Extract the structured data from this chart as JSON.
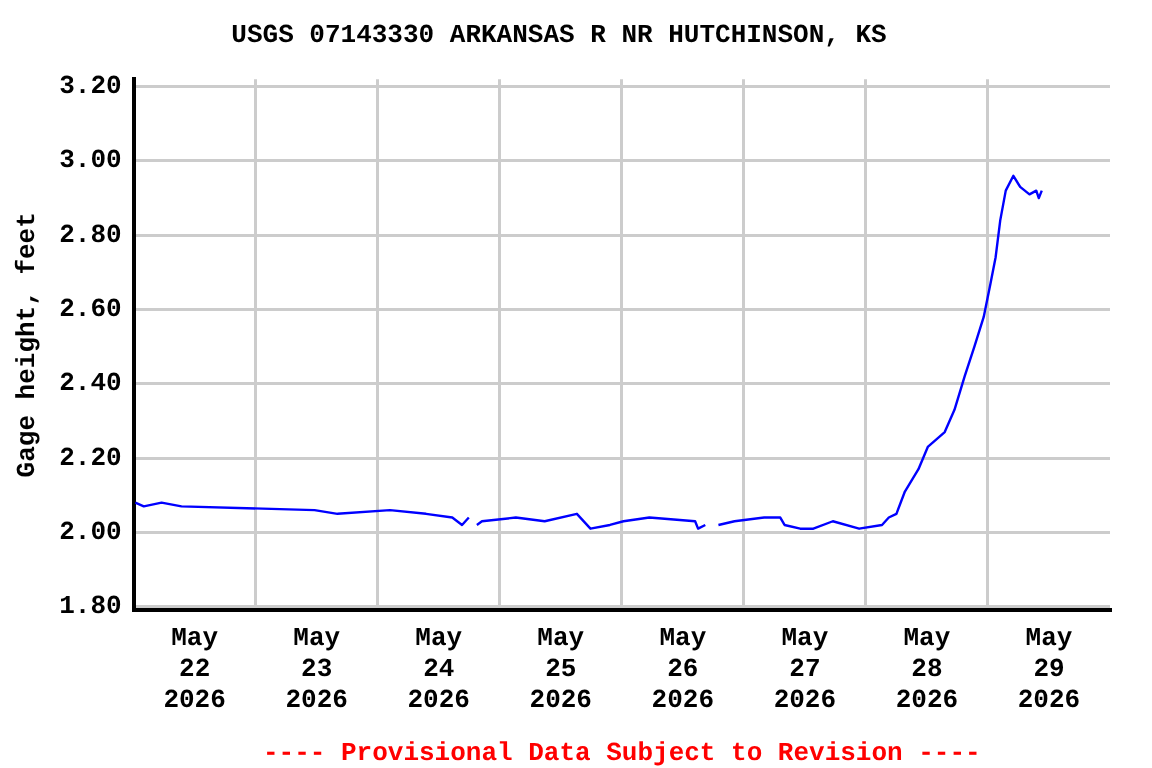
{
  "chart_data": {
    "type": "line",
    "title": "USGS 07143330 ARKANSAS R NR HUTCHINSON, KS",
    "ylabel": "Gage height, feet",
    "annotations": [
      "---- Provisional Data Subject to Revision ----"
    ],
    "x": [
      "2026-05-22T00:20",
      "2026-05-22T02:00",
      "2026-05-22T05:30",
      "2026-05-22T09:25",
      "2026-05-23T11:35",
      "2026-05-23T16:05",
      "2026-05-24T02:25",
      "2026-05-24T09:30",
      "2026-05-24T14:40",
      "2026-05-24T16:35",
      "2026-05-24T17:55",
      "2026-05-24T18:30",
      "2026-05-24T19:30",
      "2026-05-24T20:30",
      "2026-05-25T03:10",
      "2026-05-25T08:50",
      "2026-05-25T15:10",
      "2026-05-25T17:50",
      "2026-05-25T21:40",
      "2026-05-26T00:20",
      "2026-05-26T05:25",
      "2026-05-26T14:25",
      "2026-05-26T15:00",
      "2026-05-26T16:25",
      "2026-05-26T17:30",
      "2026-05-26T19:00",
      "2026-05-26T22:10",
      "2026-05-27T04:00",
      "2026-05-27T07:10",
      "2026-05-27T08:00",
      "2026-05-27T11:05",
      "2026-05-27T13:40",
      "2026-05-27T17:30",
      "2026-05-27T22:40",
      "2026-05-28T03:10",
      "2026-05-28T04:30",
      "2026-05-28T06:00",
      "2026-05-28T07:40",
      "2026-05-28T10:20",
      "2026-05-28T12:10",
      "2026-05-28T15:30",
      "2026-05-28T17:25",
      "2026-05-28T19:25",
      "2026-05-28T21:20",
      "2026-05-28T23:10",
      "2026-05-29T00:30",
      "2026-05-29T01:30",
      "2026-05-29T02:25",
      "2026-05-29T03:30",
      "2026-05-29T05:00",
      "2026-05-29T06:20",
      "2026-05-29T08:10",
      "2026-05-29T09:30",
      "2026-05-29T10:00",
      "2026-05-29T10:35"
    ],
    "series": [
      {
        "color": "#0000ff",
        "values": [
          2.08,
          2.07,
          2.08,
          2.07,
          2.06,
          2.05,
          2.06,
          2.05,
          2.04,
          2.02,
          2.04,
          null,
          2.02,
          2.03,
          2.04,
          2.03,
          2.05,
          2.01,
          2.02,
          2.03,
          2.04,
          2.03,
          2.01,
          2.02,
          null,
          2.02,
          2.03,
          2.04,
          2.04,
          2.02,
          2.01,
          2.01,
          2.03,
          2.01,
          2.02,
          2.04,
          2.05,
          2.11,
          2.17,
          2.23,
          2.27,
          2.33,
          2.42,
          2.5,
          2.58,
          2.67,
          2.74,
          2.84,
          2.92,
          2.96,
          2.93,
          2.91,
          2.92,
          2.9,
          2.92
        ]
      }
    ],
    "xlim": [
      "2026-05-22T00:00",
      "2026-05-30T00:00"
    ],
    "xticks": [
      {
        "value": "2026-05-22T00:00",
        "label": null
      },
      {
        "value": "2026-05-22T12:00",
        "label": "May\n22\n2026"
      },
      {
        "value": "2026-05-23T00:00",
        "label": null
      },
      {
        "value": "2026-05-23T12:00",
        "label": "May\n23\n2026"
      },
      {
        "value": "2026-05-24T00:00",
        "label": null
      },
      {
        "value": "2026-05-24T12:00",
        "label": "May\n24\n2026"
      },
      {
        "value": "2026-05-25T00:00",
        "label": null
      },
      {
        "value": "2026-05-25T12:00",
        "label": "May\n25\n2026"
      },
      {
        "value": "2026-05-26T00:00",
        "label": null
      },
      {
        "value": "2026-05-26T12:00",
        "label": "May\n26\n2026"
      },
      {
        "value": "2026-05-27T00:00",
        "label": null
      },
      {
        "value": "2026-05-27T12:00",
        "label": "May\n27\n2026"
      },
      {
        "value": "2026-05-28T00:00",
        "label": null
      },
      {
        "value": "2026-05-28T12:00",
        "label": "May\n28\n2026"
      },
      {
        "value": "2026-05-29T00:00",
        "label": null
      },
      {
        "value": "2026-05-29T12:00",
        "label": "May\n29\n2026"
      }
    ],
    "ylim": [
      1.79,
      3.22
    ],
    "yticks": [
      {
        "value": 1.8,
        "label": "1.80"
      },
      {
        "value": 2.0,
        "label": "2.00"
      },
      {
        "value": 2.2,
        "label": "2.20"
      },
      {
        "value": 2.4,
        "label": "2.40"
      },
      {
        "value": 2.6,
        "label": "2.60"
      },
      {
        "value": 2.8,
        "label": "2.80"
      },
      {
        "value": 3.0,
        "label": "3.00"
      },
      {
        "value": 3.2,
        "label": "3.20"
      }
    ],
    "grid": true,
    "legend": false,
    "marker": "none",
    "line_style": "solid"
  }
}
